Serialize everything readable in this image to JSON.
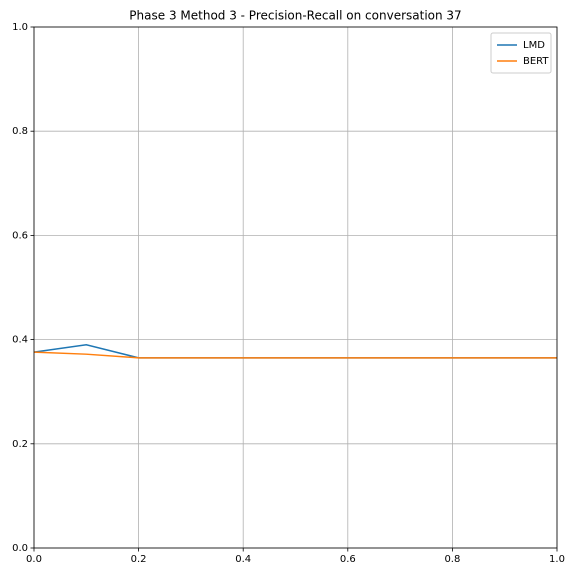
{
  "chart_data": {
    "type": "line",
    "title": "Phase 3 Method 3 - Precision-Recall on conversation 37",
    "x": [
      0,
      0.1,
      0.2,
      0.3,
      0.4,
      0.5,
      0.6,
      0.7,
      0.8,
      0.9,
      1
    ],
    "series": [
      {
        "name": "LMD",
        "color": "#1f77b4",
        "values": [
          0.376,
          0.39,
          0.365,
          0.365,
          0.365,
          0.365,
          0.365,
          0.365,
          0.365,
          0.365,
          0.365
        ]
      },
      {
        "name": "BERT",
        "color": "#ff7f0e",
        "values": [
          0.376,
          0.372,
          0.365,
          0.365,
          0.365,
          0.365,
          0.365,
          0.365,
          0.365,
          0.365,
          0.365
        ]
      }
    ],
    "xlim": [
      0,
      1
    ],
    "ylim": [
      0,
      1
    ],
    "xticks": [
      {
        "value": 0,
        "label": "0.0"
      },
      0.2,
      0.4,
      0.6,
      0.8,
      {
        "value": 1,
        "label": "1.0"
      }
    ],
    "yticks": [
      {
        "value": 0,
        "label": "0.0"
      },
      0.2,
      0.4,
      0.6,
      0.8,
      {
        "value": 1,
        "label": "1.0"
      }
    ],
    "grid": true,
    "legend": "upper right"
  }
}
